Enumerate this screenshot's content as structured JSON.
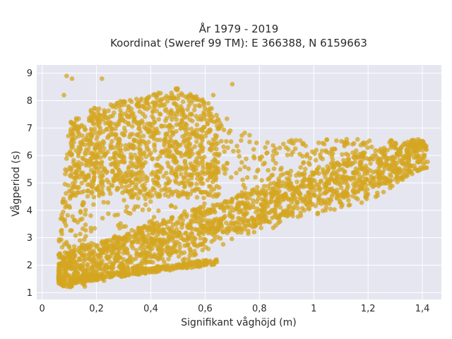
{
  "chart_data": {
    "type": "scatter",
    "title_line1": "År 1979 - 2019",
    "title_line2": "Koordinat (Sweref 99 TM): E 366388, N 6159663",
    "xlabel": "Signifikant våghöjd (m)",
    "ylabel": "Vågperiod (s)",
    "xlim": [
      -0.02,
      1.47
    ],
    "ylim": [
      0.75,
      9.3
    ],
    "x_ticks": [
      0,
      0.2,
      0.4,
      0.6,
      0.8,
      1.0,
      1.2,
      1.4
    ],
    "x_tick_labels": [
      "0",
      "0,2",
      "0,4",
      "0,6",
      "0,8",
      "1",
      "1,2",
      "1,4"
    ],
    "y_ticks": [
      1,
      2,
      3,
      4,
      5,
      6,
      7,
      8,
      9
    ],
    "y_tick_labels": [
      "1",
      "2",
      "3",
      "4",
      "5",
      "6",
      "7",
      "8",
      "9"
    ],
    "grid": true,
    "plot_bgcolor": "#e5e6f0",
    "marker_color": "#d4a520",
    "point_density_envelope": {
      "description_of_shape": [
        {
          "x": 0.05,
          "y_min": 1.4,
          "y_max": 1.6
        },
        {
          "x": 0.1,
          "y_min": 1.1,
          "y_max": 7.2
        },
        {
          "x": 0.2,
          "y_min": 1.3,
          "y_max": 7.8
        },
        {
          "x": 0.3,
          "y_min": 1.6,
          "y_max": 8.0
        },
        {
          "x": 0.4,
          "y_min": 1.8,
          "y_max": 8.2
        },
        {
          "x": 0.5,
          "y_min": 2.0,
          "y_max": 8.5
        },
        {
          "x": 0.6,
          "y_min": 2.5,
          "y_max": 8.0
        },
        {
          "x": 0.8,
          "y_min": 3.2,
          "y_max": 6.5
        },
        {
          "x": 1.0,
          "y_min": 3.8,
          "y_max": 6.6
        },
        {
          "x": 1.2,
          "y_min": 4.3,
          "y_max": 6.6
        },
        {
          "x": 1.4,
          "y_min": 5.5,
          "y_max": 6.6
        }
      ],
      "outliers": [
        {
          "x": 0.09,
          "y": 8.9
        },
        {
          "x": 0.11,
          "y": 8.8
        },
        {
          "x": 0.22,
          "y": 8.8
        },
        {
          "x": 0.08,
          "y": 8.2
        },
        {
          "x": 0.7,
          "y": 8.6
        },
        {
          "x": 0.63,
          "y": 8.2
        },
        {
          "x": 0.57,
          "y": 2.15
        }
      ]
    }
  }
}
